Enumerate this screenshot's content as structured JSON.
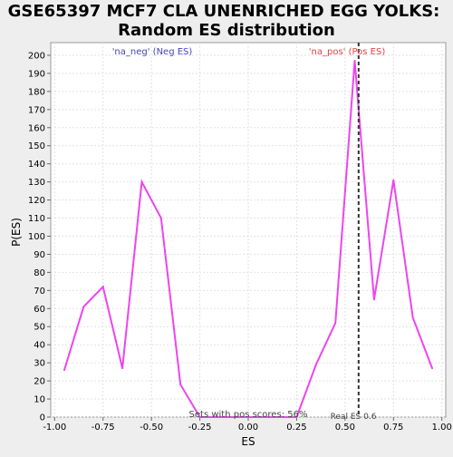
{
  "chart_data": {
    "type": "line",
    "title_line1": "GSE65397 MCF7 CLA UNENRICHED EGG YOLKS:",
    "title_line2": "Random ES distribution",
    "xlabel": "ES",
    "ylabel": "P(ES)",
    "xlim": [
      -1.02,
      1.02
    ],
    "ylim": [
      0,
      207
    ],
    "x_ticks": [
      "-1.00",
      "-0.75",
      "-0.50",
      "-0.25",
      "0.00",
      "0.25",
      "0.50",
      "0.75",
      "1.00"
    ],
    "x_tick_values": [
      -1.0,
      -0.75,
      -0.5,
      -0.25,
      0.0,
      0.25,
      0.5,
      0.75,
      1.0
    ],
    "y_ticks": [
      0,
      10,
      20,
      30,
      40,
      50,
      60,
      70,
      80,
      90,
      100,
      110,
      120,
      130,
      140,
      150,
      160,
      170,
      180,
      190,
      200
    ],
    "grid": true,
    "series": [
      {
        "color": "#ee44ee",
        "x": [
          -0.95,
          -0.85,
          -0.75,
          -0.65,
          -0.55,
          -0.45,
          -0.35,
          -0.25,
          -0.15,
          -0.05,
          0.05,
          0.15,
          0.25,
          0.35,
          0.45,
          0.55,
          0.65,
          0.75,
          0.85,
          0.95
        ],
        "y": [
          26,
          61,
          72,
          27,
          130,
          110,
          18,
          0,
          0,
          0,
          0,
          0,
          0,
          29,
          52,
          197,
          65,
          131,
          55,
          27
        ]
      }
    ],
    "real_es": 0.57,
    "annotations": {
      "neg_label": "'na_neg' (Neg ES)",
      "neg_color": "#4444bb",
      "pos_label": "'na_pos' (Pos ES)",
      "pos_color": "#dd4444",
      "pos_scores": "Sets with pos scores: 56%",
      "real_es_label": "Real ES 0.6"
    }
  }
}
